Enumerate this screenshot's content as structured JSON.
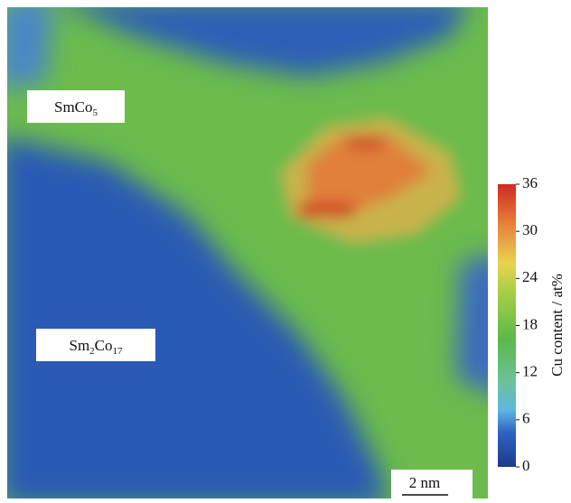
{
  "phases": [
    {
      "parts": [
        "SmCo",
        "5"
      ]
    },
    {
      "parts": [
        "Sm",
        "2",
        "Co",
        "17"
      ]
    }
  ],
  "scale_bar": "2 nm",
  "colorbar": {
    "label": "Cu content / at%",
    "lim": [
      0,
      36
    ],
    "ticks": [
      0,
      6,
      12,
      18,
      24,
      30,
      36
    ]
  }
}
